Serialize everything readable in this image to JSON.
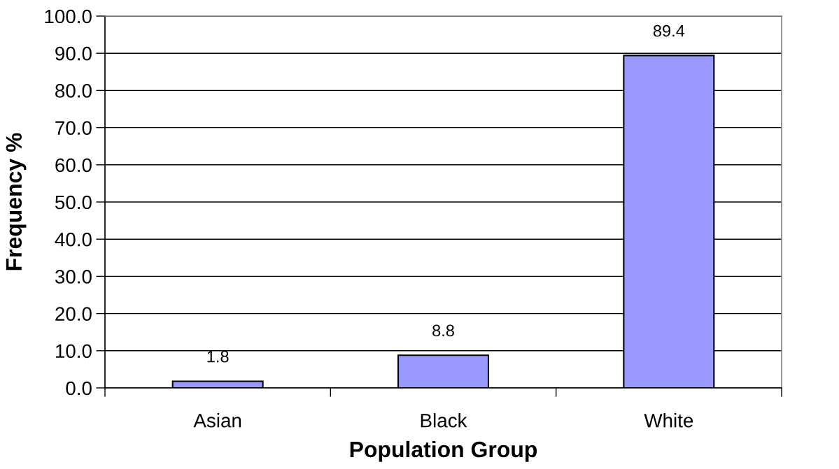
{
  "chart_data": {
    "type": "bar",
    "xlabel": "Population Group",
    "ylabel": "Frequency %",
    "categories": [
      "Asian",
      "Black",
      "White"
    ],
    "values": [
      1.8,
      8.8,
      89.4
    ],
    "color": "#9999ff",
    "ylim": [
      0,
      100
    ],
    "yticks": [
      {
        "value": 0,
        "label": "0.0"
      },
      {
        "value": 10,
        "label": "10.0"
      },
      {
        "value": 20,
        "label": "20.0"
      },
      {
        "value": 30,
        "label": "30.0"
      },
      {
        "value": 40,
        "label": "40.0"
      },
      {
        "value": 50,
        "label": "50.0"
      },
      {
        "value": 60,
        "label": "60.0"
      },
      {
        "value": 70,
        "label": "70.0"
      },
      {
        "value": 80,
        "label": "80.0"
      },
      {
        "value": 90,
        "label": "90.0"
      },
      {
        "value": 100,
        "label": "100.0"
      }
    ],
    "grid": "y",
    "data_labels": true
  }
}
